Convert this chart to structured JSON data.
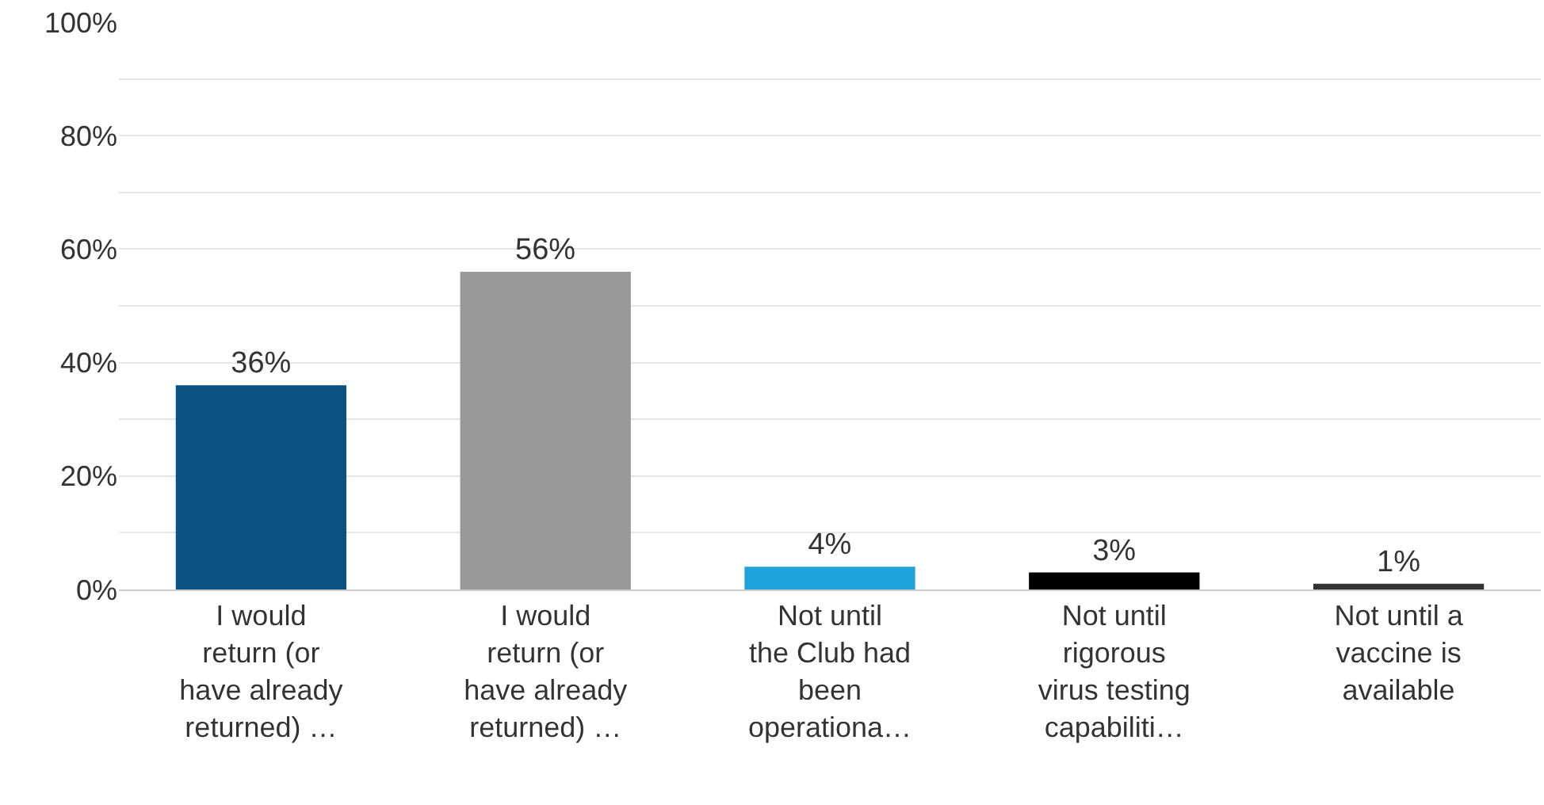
{
  "chart_data": {
    "type": "bar",
    "categories": [
      "I would\nreturn (or\nhave already\nreturned) …",
      "I would\nreturn (or\nhave already\nreturned) …",
      "Not until\nthe Club had\nbeen\noperationa…",
      "Not until\nrigorous\nvirus testing\ncapabiliti…",
      "Not until a\nvaccine is\navailable"
    ],
    "values": [
      36,
      56,
      4,
      3,
      1
    ],
    "colors": [
      "#0b5282",
      "#999999",
      "#1fa3db",
      "#000000",
      "#333333"
    ],
    "value_labels": [
      "36%",
      "56%",
      "4%",
      "3%",
      "1%"
    ],
    "ylim": [
      0,
      100
    ],
    "yticks": [
      {
        "value": 0,
        "label": "0%"
      },
      {
        "value": 10,
        "label": null
      },
      {
        "value": 20,
        "label": "20%"
      },
      {
        "value": 30,
        "label": null
      },
      {
        "value": 40,
        "label": "40%"
      },
      {
        "value": 50,
        "label": null
      },
      {
        "value": 60,
        "label": "60%"
      },
      {
        "value": 70,
        "label": null
      },
      {
        "value": 80,
        "label": "80%"
      },
      {
        "value": 90,
        "label": null
      },
      {
        "value": 100,
        "label": "100%"
      }
    ],
    "grid": "y"
  }
}
